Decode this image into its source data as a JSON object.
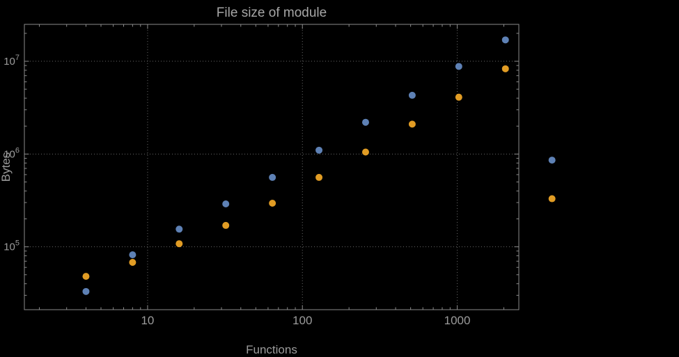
{
  "chart_data": {
    "type": "scatter",
    "title": "File size of module",
    "xlabel": "Functions",
    "ylabel": "Bytes",
    "x_scale": "log",
    "y_scale": "log",
    "xlim": [
      1.6,
      2500
    ],
    "ylim": [
      21000,
      25000000
    ],
    "x_ticks": [
      10,
      100,
      1000
    ],
    "y_ticks": [
      100000,
      1000000,
      10000000
    ],
    "grid": "dotted",
    "legend": "none",
    "x": [
      4,
      8,
      16,
      32,
      64,
      128,
      256,
      512,
      1024,
      2048,
      4096
    ],
    "series": [
      {
        "name": "blue",
        "color": "#5E81B5",
        "values": [
          33000,
          82000,
          155000,
          290000,
          560000,
          1100000,
          2200000,
          4300000,
          8800000,
          17000000,
          860000
        ]
      },
      {
        "name": "orange",
        "color": "#E19C24",
        "values": [
          48000,
          68000,
          108000,
          170000,
          295000,
          560000,
          1050000,
          2100000,
          4100000,
          8300000,
          330000
        ]
      }
    ],
    "colors": {
      "background": "#000000",
      "frame": "#8c8c8c",
      "grid": "#6a6a6a",
      "text": "#9c9c9c",
      "title": "#a6a6a6"
    }
  }
}
